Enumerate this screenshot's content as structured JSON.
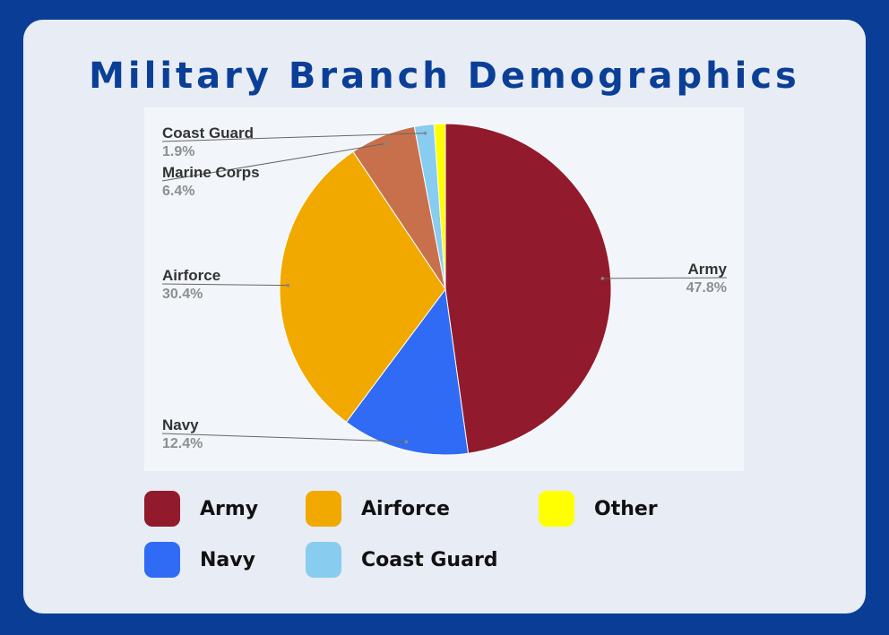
{
  "page": {
    "title": "Military Branch Demographics"
  },
  "chart_data": {
    "type": "pie",
    "slices": [
      {
        "label": "Army",
        "value": 47.8,
        "display": "47.8%",
        "color": "#921a2d"
      },
      {
        "label": "Navy",
        "value": 12.4,
        "display": "12.4%",
        "color": "#2f6bf5"
      },
      {
        "label": "Airforce",
        "value": 30.4,
        "display": "30.4%",
        "color": "#f1a900"
      },
      {
        "label": "Marine Corps",
        "value": 6.4,
        "display": "6.4%",
        "color": "#c8704c"
      },
      {
        "label": "Coast Guard",
        "value": 1.9,
        "display": "1.9%",
        "color": "#88ccf0"
      },
      {
        "label": "Other",
        "value": 1.1,
        "display": "",
        "color": "#ffff00"
      }
    ],
    "legend": [
      {
        "label": "Army",
        "color": "#921a2d"
      },
      {
        "label": "Airforce",
        "color": "#f1a900"
      },
      {
        "label": "Other",
        "color": "#ffff00"
      },
      {
        "label": "Navy",
        "color": "#2f6bf5"
      },
      {
        "label": "Coast Guard",
        "color": "#88ccf0"
      }
    ],
    "legend_position": "bottom"
  }
}
